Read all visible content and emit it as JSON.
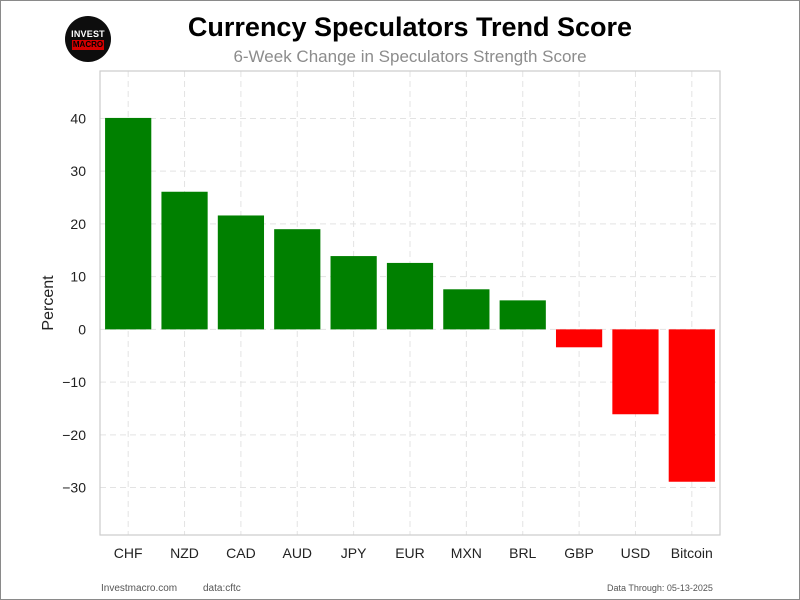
{
  "header": {
    "title": "Currency Speculators Trend Score",
    "subtitle": "6-Week Change in Speculators Strength Score"
  },
  "logo": {
    "line1": "INVEST",
    "line2": "MACRO"
  },
  "footer": {
    "site": "Investmacro.com",
    "source": "data:cftc",
    "data_through": "Data Through: 05-13-2025"
  },
  "colors": {
    "positive": "#008000",
    "negative": "#ff0000"
  },
  "chart_data": {
    "type": "bar",
    "title": "Currency Speculators Trend Score",
    "subtitle": "6-Week Change in Speculators Strength Score",
    "xlabel": "",
    "ylabel": "Percent",
    "categories": [
      "CHF",
      "NZD",
      "CAD",
      "AUD",
      "JPY",
      "EUR",
      "MXN",
      "BRL",
      "GBP",
      "USD",
      "Bitcoin"
    ],
    "values": [
      40.1,
      26.1,
      21.6,
      19.0,
      13.9,
      12.6,
      7.6,
      5.5,
      -3.4,
      -16.1,
      -28.9
    ],
    "ylim": [
      -39,
      49
    ],
    "yticks": [
      -30,
      -20,
      -10,
      0,
      10,
      20,
      30,
      40
    ],
    "ytick_labels": [
      "−30",
      "−20",
      "−10",
      "0",
      "10",
      "20",
      "30",
      "40"
    ],
    "grid": true,
    "legend": "none"
  }
}
